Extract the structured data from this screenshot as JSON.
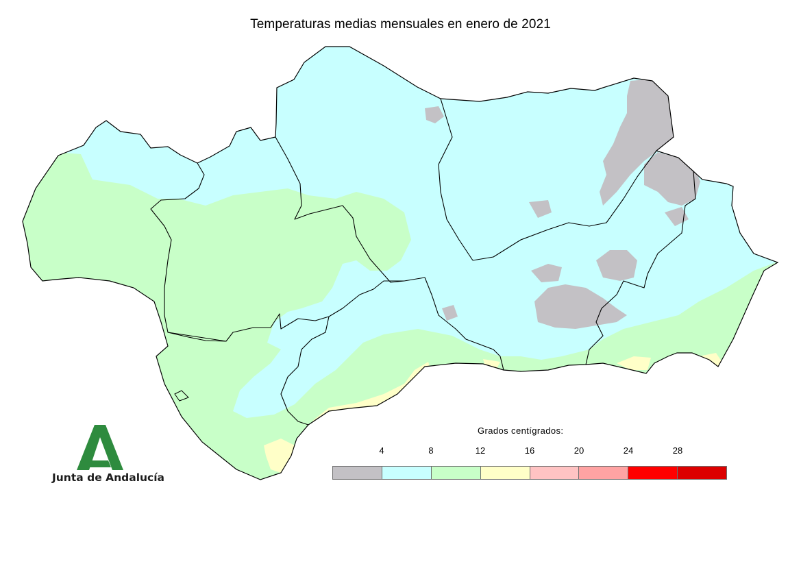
{
  "title": "Temperaturas medias mensuales en enero de 2021",
  "legend": {
    "caption": "Grados centígrados:",
    "ticks": [
      "4",
      "8",
      "12",
      "16",
      "20",
      "24",
      "28"
    ],
    "classes": [
      {
        "color": "#c3c1c5"
      },
      {
        "color": "#c8ffff"
      },
      {
        "color": "#c8ffc8"
      },
      {
        "color": "#ffffc8"
      },
      {
        "color": "#ffc3c3"
      },
      {
        "color": "#ffa3a3"
      },
      {
        "color": "#ff0000"
      },
      {
        "color": "#dc0000"
      }
    ]
  },
  "map_colors": {
    "below_4": "#c3c1c5",
    "4_to_8": "#c8ffff",
    "8_to_12": "#c8ffc8",
    "12_to_16": "#ffffc8",
    "boundary": "#000000"
  },
  "logo": {
    "text": "Junta de Andalucía",
    "icon": "junta-de-andalucia-logo-icon",
    "color": "#2e8b3e"
  }
}
